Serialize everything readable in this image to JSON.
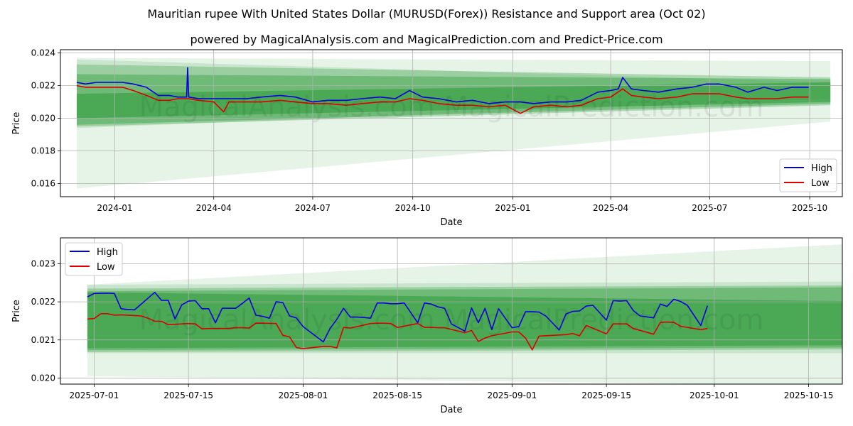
{
  "title": "Mauritian rupee With United States Dollar (MURUSD(Forex)) Resistance and Support area (Oct 02)",
  "subtitle": "powered by MagicalAnalysis.com and MagicalPrediction.com and Predict-Price.com",
  "watermark": "MagicalAnalysis.com   MagicalPrediction.com",
  "colors": {
    "high": "#0000dd",
    "low": "#dd0000",
    "band": "#2e9a3a"
  },
  "chart_data": [
    {
      "type": "line",
      "xlabel": "Date",
      "ylabel": "Price",
      "ylim": [
        0.0152,
        0.0242
      ],
      "xlim": [
        "2023-11-12",
        "2025-10-31"
      ],
      "x_ticks": [
        {
          "date": "2024-01-01",
          "label": "2024-01"
        },
        {
          "date": "2024-04-01",
          "label": "2024-04"
        },
        {
          "date": "2024-07-01",
          "label": "2024-07"
        },
        {
          "date": "2024-10-01",
          "label": "2024-10"
        },
        {
          "date": "2025-01-01",
          "label": "2025-01"
        },
        {
          "date": "2025-04-01",
          "label": "2025-04"
        },
        {
          "date": "2025-07-01",
          "label": "2025-07"
        },
        {
          "date": "2025-10-01",
          "label": "2025-10"
        }
      ],
      "y_ticks": [
        {
          "value": 0.016,
          "label": "0.016"
        },
        {
          "value": 0.018,
          "label": "0.018"
        },
        {
          "value": 0.02,
          "label": "0.020"
        },
        {
          "value": 0.022,
          "label": "0.022"
        },
        {
          "value": 0.024,
          "label": "0.024"
        }
      ],
      "grid": true,
      "legend": "lower right",
      "series": [
        {
          "name": "High",
          "x": [
            "2023-11-27",
            "2023-12-05",
            "2023-12-15",
            "2023-12-27",
            "2024-01-08",
            "2024-01-18",
            "2024-01-30",
            "2024-02-10",
            "2024-02-20",
            "2024-02-28",
            "2024-03-07",
            "2024-03-08",
            "2024-03-09",
            "2024-03-18",
            "2024-04-01",
            "2024-04-15",
            "2024-05-01",
            "2024-05-15",
            "2024-06-01",
            "2024-06-15",
            "2024-07-01",
            "2024-07-15",
            "2024-08-01",
            "2024-08-15",
            "2024-09-01",
            "2024-09-15",
            "2024-09-28",
            "2024-10-10",
            "2024-10-25",
            "2024-11-10",
            "2024-11-25",
            "2024-12-10",
            "2024-12-25",
            "2025-01-08",
            "2025-01-20",
            "2025-02-05",
            "2025-02-20",
            "2025-03-05",
            "2025-03-20",
            "2025-04-01",
            "2025-04-08",
            "2025-04-12",
            "2025-04-20",
            "2025-05-01",
            "2025-05-15",
            "2025-06-01",
            "2025-06-15",
            "2025-06-28",
            "2025-07-10",
            "2025-07-25",
            "2025-08-05",
            "2025-08-20",
            "2025-09-01",
            "2025-09-15",
            "2025-09-30"
          ],
          "values": [
            0.0222,
            0.0221,
            0.0222,
            0.0222,
            0.0222,
            0.0221,
            0.0219,
            0.0214,
            0.0214,
            0.0213,
            0.0213,
            0.0231,
            0.0213,
            0.0212,
            0.0212,
            0.0212,
            0.0212,
            0.0213,
            0.0214,
            0.0213,
            0.021,
            0.0211,
            0.0211,
            0.0212,
            0.0213,
            0.0212,
            0.0217,
            0.0213,
            0.0212,
            0.021,
            0.0211,
            0.0209,
            0.021,
            0.021,
            0.0209,
            0.021,
            0.021,
            0.0211,
            0.0216,
            0.0217,
            0.0218,
            0.0225,
            0.0218,
            0.0217,
            0.0216,
            0.0218,
            0.0219,
            0.0221,
            0.0221,
            0.0219,
            0.0216,
            0.0219,
            0.0217,
            0.0219,
            0.0219
          ]
        },
        {
          "name": "Low",
          "x": [
            "2023-11-27",
            "2023-12-05",
            "2023-12-15",
            "2023-12-27",
            "2024-01-08",
            "2024-01-18",
            "2024-01-30",
            "2024-02-10",
            "2024-02-20",
            "2024-02-28",
            "2024-03-09",
            "2024-03-18",
            "2024-04-01",
            "2024-04-10",
            "2024-04-15",
            "2024-05-01",
            "2024-05-15",
            "2024-06-01",
            "2024-06-15",
            "2024-07-01",
            "2024-07-15",
            "2024-08-01",
            "2024-08-15",
            "2024-09-01",
            "2024-09-15",
            "2024-09-28",
            "2024-10-10",
            "2024-10-25",
            "2024-11-10",
            "2024-11-25",
            "2024-12-10",
            "2024-12-25",
            "2025-01-08",
            "2025-01-20",
            "2025-02-05",
            "2025-02-20",
            "2025-03-05",
            "2025-03-20",
            "2025-04-01",
            "2025-04-12",
            "2025-04-20",
            "2025-05-01",
            "2025-05-15",
            "2025-06-01",
            "2025-06-15",
            "2025-06-28",
            "2025-07-10",
            "2025-07-25",
            "2025-08-05",
            "2025-08-20",
            "2025-09-01",
            "2025-09-15",
            "2025-09-30"
          ],
          "values": [
            0.022,
            0.0219,
            0.0219,
            0.0219,
            0.0219,
            0.0217,
            0.0214,
            0.0211,
            0.0211,
            0.0212,
            0.0212,
            0.0211,
            0.021,
            0.0204,
            0.021,
            0.021,
            0.021,
            0.0211,
            0.021,
            0.0209,
            0.0209,
            0.0208,
            0.0209,
            0.021,
            0.021,
            0.0212,
            0.0211,
            0.0209,
            0.0208,
            0.0208,
            0.0207,
            0.0208,
            0.0203,
            0.0207,
            0.0208,
            0.0207,
            0.0208,
            0.0212,
            0.0213,
            0.0218,
            0.0214,
            0.0213,
            0.0212,
            0.0213,
            0.0215,
            0.0215,
            0.0215,
            0.0213,
            0.0212,
            0.0212,
            0.0212,
            0.0213,
            0.0213
          ]
        }
      ],
      "bands": [
        {
          "x": [
            "2023-11-27",
            "2025-10-20"
          ],
          "upper": [
            0.0237,
            0.0235
          ],
          "lower": [
            0.0157,
            0.0198
          ],
          "alpha": 0.12
        },
        {
          "x": [
            "2023-11-27",
            "2025-10-20"
          ],
          "upper": [
            0.0236,
            0.0222
          ],
          "lower": [
            0.0194,
            0.0212
          ],
          "alpha": 0.15
        },
        {
          "x": [
            "2023-11-27",
            "2025-10-20"
          ],
          "upper": [
            0.0233,
            0.0225
          ],
          "lower": [
            0.0195,
            0.0208
          ],
          "alpha": 0.3
        },
        {
          "x": [
            "2023-11-27",
            "2025-10-20"
          ],
          "upper": [
            0.0227,
            0.0224
          ],
          "lower": [
            0.0196,
            0.0209
          ],
          "alpha": 0.4
        },
        {
          "x": [
            "2023-11-27",
            "2025-10-20"
          ],
          "upper": [
            0.0215,
            0.0222
          ],
          "lower": [
            0.02,
            0.021
          ],
          "alpha": 0.55
        }
      ]
    },
    {
      "type": "line",
      "xlabel": "Date",
      "ylabel": "Price",
      "ylim": [
        0.01984,
        0.02368
      ],
      "xlim": [
        "2025-06-26",
        "2025-10-20"
      ],
      "x_ticks": [
        {
          "date": "2025-07-01",
          "label": "2025-07-01"
        },
        {
          "date": "2025-07-15",
          "label": "2025-07-15"
        },
        {
          "date": "2025-08-01",
          "label": "2025-08-01"
        },
        {
          "date": "2025-08-15",
          "label": "2025-08-15"
        },
        {
          "date": "2025-09-01",
          "label": "2025-09-01"
        },
        {
          "date": "2025-09-15",
          "label": "2025-09-15"
        },
        {
          "date": "2025-10-01",
          "label": "2025-10-01"
        },
        {
          "date": "2025-10-15",
          "label": "2025-10-15"
        }
      ],
      "y_ticks": [
        {
          "value": 0.02,
          "label": "0.020"
        },
        {
          "value": 0.021,
          "label": "0.021"
        },
        {
          "value": 0.022,
          "label": "0.022"
        },
        {
          "value": 0.023,
          "label": "0.023"
        }
      ],
      "grid": true,
      "legend": "upper left",
      "series": [
        {
          "name": "High",
          "x": [
            "2025-06-30",
            "2025-07-01",
            "2025-07-03",
            "2025-07-04",
            "2025-07-05",
            "2025-07-06",
            "2025-07-07",
            "2025-07-10",
            "2025-07-11",
            "2025-07-12",
            "2025-07-13",
            "2025-07-14",
            "2025-07-15",
            "2025-07-16",
            "2025-07-17",
            "2025-07-18",
            "2025-07-19",
            "2025-07-20",
            "2025-07-22",
            "2025-07-23",
            "2025-07-24",
            "2025-07-25",
            "2025-07-26",
            "2025-07-27",
            "2025-07-28",
            "2025-07-29",
            "2025-07-30",
            "2025-07-31",
            "2025-08-01",
            "2025-08-04",
            "2025-08-05",
            "2025-08-06",
            "2025-08-07",
            "2025-08-08",
            "2025-08-09",
            "2025-08-10",
            "2025-08-11",
            "2025-08-12",
            "2025-08-13",
            "2025-08-14",
            "2025-08-15",
            "2025-08-16",
            "2025-08-18",
            "2025-08-19",
            "2025-08-20",
            "2025-08-21",
            "2025-08-22",
            "2025-08-23",
            "2025-08-25",
            "2025-08-26",
            "2025-08-27",
            "2025-08-28",
            "2025-08-29",
            "2025-08-30",
            "2025-09-01",
            "2025-09-02",
            "2025-09-03",
            "2025-09-04",
            "2025-09-05",
            "2025-09-06",
            "2025-09-08",
            "2025-09-09",
            "2025-09-10",
            "2025-09-11",
            "2025-09-12",
            "2025-09-13",
            "2025-09-15",
            "2025-09-16",
            "2025-09-17",
            "2025-09-18",
            "2025-09-19",
            "2025-09-20",
            "2025-09-22",
            "2025-09-23",
            "2025-09-24",
            "2025-09-25",
            "2025-09-26",
            "2025-09-27",
            "2025-09-29",
            "2025-09-30"
          ],
          "values": [
            0.02213,
            0.02222,
            0.02223,
            0.02222,
            0.02182,
            0.0218,
            0.02179,
            0.02225,
            0.02204,
            0.02204,
            0.02155,
            0.02192,
            0.02202,
            0.02203,
            0.02182,
            0.02182,
            0.02145,
            0.02183,
            0.02183,
            0.02196,
            0.0221,
            0.02165,
            0.02162,
            0.02157,
            0.022,
            0.02198,
            0.02163,
            0.02158,
            0.02135,
            0.02095,
            0.0213,
            0.02154,
            0.02183,
            0.0216,
            0.0216,
            0.02159,
            0.02157,
            0.02197,
            0.02197,
            0.02195,
            0.02195,
            0.02197,
            0.02145,
            0.02197,
            0.02194,
            0.02187,
            0.02183,
            0.02142,
            0.02123,
            0.02184,
            0.02145,
            0.02183,
            0.02127,
            0.02182,
            0.02132,
            0.02135,
            0.02174,
            0.02174,
            0.02173,
            0.02163,
            0.02126,
            0.02168,
            0.02175,
            0.02176,
            0.02189,
            0.02191,
            0.02152,
            0.02203,
            0.02202,
            0.02203,
            0.02177,
            0.02163,
            0.02158,
            0.02194,
            0.02188,
            0.02207,
            0.02201,
            0.02191,
            0.02138,
            0.0219
          ]
        },
        {
          "name": "Low",
          "x": [
            "2025-06-30",
            "2025-07-01",
            "2025-07-02",
            "2025-07-03",
            "2025-07-04",
            "2025-07-05",
            "2025-07-07",
            "2025-07-08",
            "2025-07-09",
            "2025-07-10",
            "2025-07-11",
            "2025-07-12",
            "2025-07-14",
            "2025-07-15",
            "2025-07-16",
            "2025-07-17",
            "2025-07-18",
            "2025-07-19",
            "2025-07-21",
            "2025-07-22",
            "2025-07-23",
            "2025-07-24",
            "2025-07-25",
            "2025-07-26",
            "2025-07-28",
            "2025-07-29",
            "2025-07-30",
            "2025-07-31",
            "2025-08-01",
            "2025-08-04",
            "2025-08-05",
            "2025-08-06",
            "2025-08-07",
            "2025-08-08",
            "2025-08-11",
            "2025-08-12",
            "2025-08-13",
            "2025-08-14",
            "2025-08-15",
            "2025-08-18",
            "2025-08-19",
            "2025-08-20",
            "2025-08-21",
            "2025-08-22",
            "2025-08-25",
            "2025-08-26",
            "2025-08-27",
            "2025-08-28",
            "2025-08-29",
            "2025-09-01",
            "2025-09-02",
            "2025-09-03",
            "2025-09-04",
            "2025-09-05",
            "2025-09-08",
            "2025-09-09",
            "2025-09-10",
            "2025-09-11",
            "2025-09-12",
            "2025-09-15",
            "2025-09-16",
            "2025-09-17",
            "2025-09-18",
            "2025-09-19",
            "2025-09-22",
            "2025-09-23",
            "2025-09-24",
            "2025-09-25",
            "2025-09-26",
            "2025-09-29",
            "2025-09-30"
          ],
          "values": [
            0.02155,
            0.02156,
            0.02169,
            0.02169,
            0.02165,
            0.02166,
            0.02164,
            0.02163,
            0.02157,
            0.02149,
            0.02149,
            0.0214,
            0.02142,
            0.02143,
            0.02142,
            0.02129,
            0.0213,
            0.0213,
            0.0213,
            0.02132,
            0.02132,
            0.02131,
            0.02144,
            0.02144,
            0.02143,
            0.02112,
            0.02108,
            0.0208,
            0.02077,
            0.02083,
            0.02083,
            0.02079,
            0.02133,
            0.02131,
            0.02143,
            0.02144,
            0.02144,
            0.02143,
            0.02133,
            0.02143,
            0.02133,
            0.02133,
            0.02132,
            0.02132,
            0.02119,
            0.02125,
            0.02096,
            0.02105,
            0.02111,
            0.02121,
            0.02121,
            0.02105,
            0.02074,
            0.0211,
            0.02113,
            0.02114,
            0.02117,
            0.02111,
            0.02138,
            0.02116,
            0.02142,
            0.02142,
            0.02142,
            0.0213,
            0.02115,
            0.02146,
            0.02147,
            0.02146,
            0.02136,
            0.02127,
            0.0213
          ]
        }
      ],
      "bands": [
        {
          "x": [
            "2025-06-30",
            "2025-10-20"
          ],
          "upper": [
            0.02245,
            0.02351
          ],
          "lower": [
            0.02005,
            0.0198
          ],
          "alpha": 0.12
        },
        {
          "x": [
            "2025-06-30",
            "2025-10-20"
          ],
          "upper": [
            0.02245,
            0.02253
          ],
          "lower": [
            0.02065,
            0.02065
          ],
          "alpha": 0.15
        },
        {
          "x": [
            "2025-06-30",
            "2025-10-20"
          ],
          "upper": [
            0.02235,
            0.02243
          ],
          "lower": [
            0.02068,
            0.02075
          ],
          "alpha": 0.3
        },
        {
          "x": [
            "2025-06-30",
            "2025-10-20"
          ],
          "upper": [
            0.02228,
            0.02238
          ],
          "lower": [
            0.02073,
            0.0208
          ],
          "alpha": 0.4
        },
        {
          "x": [
            "2025-06-30",
            "2025-10-20"
          ],
          "upper": [
            0.02225,
            0.02202
          ],
          "lower": [
            0.02078,
            0.02086
          ],
          "alpha": 0.55
        }
      ]
    }
  ]
}
